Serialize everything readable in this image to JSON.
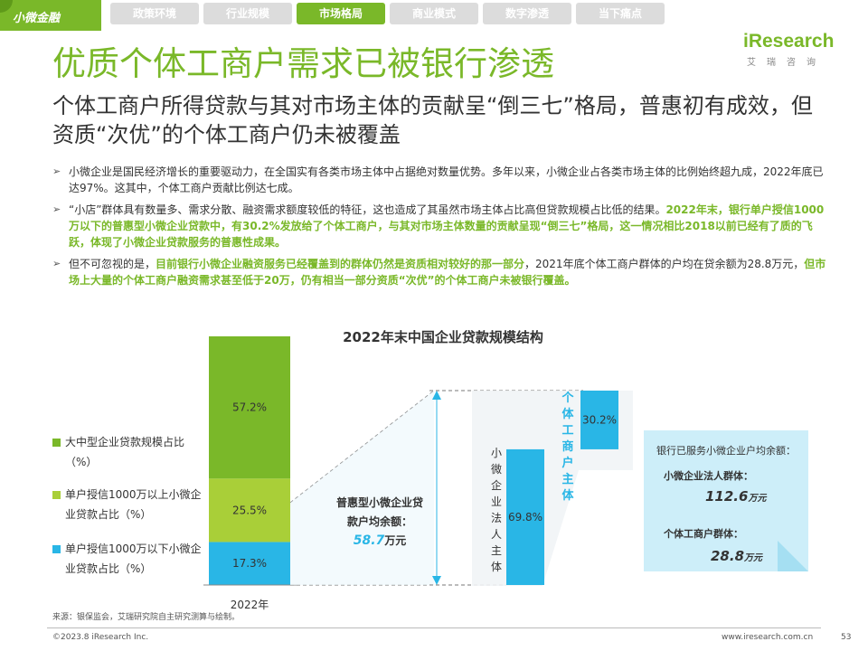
{
  "badge": "小微金融",
  "nav": {
    "tabs": [
      "政策环境",
      "行业规模",
      "市场格局",
      "商业模式",
      "数字渗透",
      "当下痛点"
    ],
    "active_index": 2
  },
  "logo": {
    "main": "iResearch",
    "sub": "艾瑞咨询"
  },
  "title": "优质个体工商户需求已被银行渗透",
  "subtitle": "个体工商户所得贷款与其对市场主体的贡献呈“倒三七”格局，普惠初有成效，但资质“次优”的个体工商户仍未被覆盖",
  "bullets": [
    {
      "mark": "➢",
      "parts": [
        {
          "t": "小微企业是国民经济增长的重要驱动力，在全国实有各类市场主体中占据绝对数量优势。多年以来，小微企业占各类市场主体的比例始终超九成，2022年底已达97%。这其中，个体工商户贡献比例达七成。",
          "hl": false
        }
      ]
    },
    {
      "mark": "➢",
      "parts": [
        {
          "t": "“小店”群体具有数量多、需求分散、融资需求额度较低的特征，这也造成了其虽然市场主体占比高但贷款规模占比低的结果。",
          "hl": false
        },
        {
          "t": "2022年末，银行单户授信1000万以下的普惠型小微企业贷款中，有30.2%发放给了个体工商户，与其对市场主体数量的贡献呈现“倒三七”格局，这一情况相比2018以前已经有了质的飞跃，体现了小微企业贷款服务的普惠性成果。",
          "hl": true
        }
      ]
    },
    {
      "mark": "➢",
      "parts": [
        {
          "t": "但不可忽视的是，",
          "hl": false
        },
        {
          "t": "目前银行小微企业融资服务已经覆盖到的群体仍然是资质相对较好的那一部分",
          "hl": true
        },
        {
          "t": "，2021年底个体工商户群体的户均在贷余额为28.8万元，",
          "hl": false
        },
        {
          "t": "但市场上大量的个体工商户融资需求甚至低于20万，仍有相当一部分资质“次优”的个体工商户未被银行覆盖。",
          "hl": true
        }
      ]
    }
  ],
  "colors": {
    "green": "#7ab829",
    "lime": "#a9cf38",
    "blue": "#29b6e6",
    "sticky": "#cdeef9"
  },
  "chart_data": [
    {
      "type": "bar",
      "title": "2022年末中国企业贷款规模结构",
      "categories": [
        "2022年"
      ],
      "series": [
        {
          "name": "单户授信1000万以下小微企业贷款占比（%）",
          "values": [
            17.3
          ]
        },
        {
          "name": "单户授信1000万以上小微企业贷款占比（%）",
          "values": [
            25.5
          ]
        },
        {
          "name": "大中型企业贷款规模占比（%）",
          "values": [
            57.2
          ]
        }
      ],
      "ylim": [
        0,
        100
      ],
      "legend": "left"
    },
    {
      "type": "bar",
      "categories": [
        "小微企业法人主体",
        "个体工商户主体"
      ],
      "values": [
        69.8,
        30.2
      ]
    }
  ],
  "avg_note": {
    "text": "普惠型小微企业贷款户均余额：",
    "value": "58.7",
    "unit": "万元"
  },
  "sticky": {
    "head": "银行已服务小微企业户均余额：",
    "label1": "小微企业法人群体：",
    "value1": "112.6",
    "label2": "个体工商户群体：",
    "value2": "28.8",
    "unit": "万元"
  },
  "source": "来源：银保监会，艾瑞研究院自主研究测算与绘制。",
  "copyright": "©2023.8 iResearch Inc.",
  "url": "www.iresearch.com.cn",
  "page": "53"
}
